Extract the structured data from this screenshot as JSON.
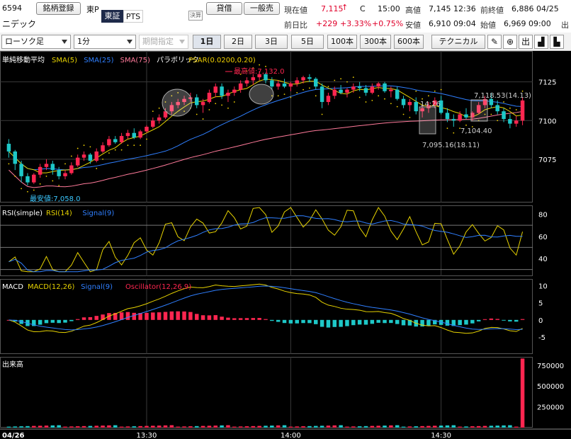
{
  "header": {
    "code": "6594",
    "name": "ニデック",
    "register_label": "銘柄登録",
    "market_label": "東P",
    "exchange_tse": "東証",
    "exchange_pts": "PTS",
    "kessan_label": "決算",
    "lending_label": "貸借",
    "general_margin_label": "一般売",
    "current_price_label": "現在値",
    "current_price": "7,115",
    "current_arrow": "↑",
    "current_flag": "C",
    "current_time": "15:00",
    "high_label": "高値",
    "high_value": "7,145 12:36",
    "prev_close_label": "前終値",
    "prev_close_value": "6,886 04/25",
    "prev_day_label": "前日比",
    "change": "+229",
    "change_pct": "+3.33%",
    "change_pct2": "+0.75%",
    "low_label": "安値",
    "low_value": "6,910 09:04",
    "open_label": "始値",
    "open_value": "6,969 09:00",
    "cut_label": "出"
  },
  "toolbar": {
    "chart_type": "ローソク足",
    "interval": "1分",
    "period_placeholder": "期間指定",
    "range_buttons": [
      "1日",
      "2日",
      "3日",
      "5日",
      "100本",
      "300本",
      "600本"
    ],
    "active_range": "1日",
    "technical_label": "テクニカル",
    "icon_pencil": "✎",
    "icon_zoom": "⊕",
    "icon_bar": "出",
    "icon_area": "▟",
    "icon_line": "▙"
  },
  "colors": {
    "up": "#ff2650",
    "down": "#1ec8c8",
    "sma5": "#e6d200",
    "sma25": "#2f7fff",
    "sma75": "#ff7a9a",
    "psar": "#f0d000",
    "rsi": "#e6d200",
    "signal": "#2f7fff",
    "osc": "#ff2650",
    "grid": "#3a3a3a",
    "text": "#ffffff"
  },
  "chart_data": [
    {
      "type": "candlestick",
      "title": "単純移動平均",
      "legend": [
        {
          "name": "SMA(5)",
          "color": "#e6d200"
        },
        {
          "name": "SMA(25)",
          "color": "#2f7fff"
        },
        {
          "name": "SMA(75)",
          "color": "#ff7a9a"
        },
        {
          "name": "パラボリック",
          "color": "#ffffff"
        },
        {
          "name": "PSAR(0.0200,0.20)",
          "color": "#f0d000"
        }
      ],
      "y_ticks": [
        7125,
        7100,
        7075
      ],
      "ylim": [
        7047,
        7145
      ],
      "x_ticks": [
        "04/26",
        "13:30",
        "14:00",
        "14:30"
      ],
      "annotations": [
        "最高値:7,132.0",
        "最安値:7,058.0",
        "7,118.53(14.13)",
        "14:26",
        "7,104.40",
        "7,095.16(18.11)"
      ],
      "candles_ohlc": [
        [
          7085,
          7088,
          7076,
          7080
        ],
        [
          7080,
          7081,
          7068,
          7072
        ],
        [
          7072,
          7074,
          7060,
          7064
        ],
        [
          7064,
          7066,
          7058,
          7060
        ],
        [
          7060,
          7066,
          7059,
          7065
        ],
        [
          7065,
          7072,
          7063,
          7070
        ],
        [
          7070,
          7075,
          7068,
          7072
        ],
        [
          7072,
          7074,
          7065,
          7068
        ],
        [
          7068,
          7070,
          7062,
          7064
        ],
        [
          7064,
          7068,
          7062,
          7066
        ],
        [
          7066,
          7073,
          7065,
          7071
        ],
        [
          7071,
          7078,
          7070,
          7076
        ],
        [
          7076,
          7080,
          7074,
          7078
        ],
        [
          7078,
          7079,
          7072,
          7074
        ],
        [
          7074,
          7082,
          7073,
          7080
        ],
        [
          7080,
          7086,
          7079,
          7084
        ],
        [
          7084,
          7090,
          7083,
          7088
        ],
        [
          7088,
          7090,
          7085,
          7086
        ],
        [
          7086,
          7092,
          7085,
          7090
        ],
        [
          7090,
          7094,
          7088,
          7092
        ],
        [
          7092,
          7095,
          7088,
          7089
        ],
        [
          7089,
          7094,
          7088,
          7093
        ],
        [
          7093,
          7097,
          7092,
          7096
        ],
        [
          7096,
          7102,
          7095,
          7100
        ],
        [
          7100,
          7104,
          7098,
          7102
        ],
        [
          7102,
          7108,
          7101,
          7106
        ],
        [
          7106,
          7112,
          7104,
          7110
        ],
        [
          7110,
          7114,
          7108,
          7112
        ],
        [
          7112,
          7116,
          7110,
          7114
        ],
        [
          7114,
          7118,
          7112,
          7115
        ],
        [
          7115,
          7117,
          7108,
          7110
        ],
        [
          7110,
          7114,
          7105,
          7112
        ],
        [
          7112,
          7120,
          7111,
          7118
        ],
        [
          7118,
          7124,
          7115,
          7122
        ],
        [
          7122,
          7124,
          7114,
          7116
        ],
        [
          7116,
          7120,
          7112,
          7118
        ],
        [
          7118,
          7122,
          7116,
          7120
        ],
        [
          7120,
          7126,
          7118,
          7124
        ],
        [
          7124,
          7128,
          7122,
          7126
        ],
        [
          7126,
          7130,
          7123,
          7128
        ],
        [
          7128,
          7132,
          7126,
          7130
        ],
        [
          7130,
          7131,
          7124,
          7126
        ],
        [
          7126,
          7128,
          7120,
          7122
        ],
        [
          7122,
          7126,
          7120,
          7124
        ],
        [
          7124,
          7127,
          7121,
          7122
        ],
        [
          7122,
          7125,
          7119,
          7124
        ],
        [
          7124,
          7128,
          7122,
          7126
        ],
        [
          7126,
          7129,
          7124,
          7128
        ],
        [
          7128,
          7130,
          7125,
          7127
        ],
        [
          7127,
          7128,
          7120,
          7122
        ],
        [
          7122,
          7124,
          7108,
          7112
        ],
        [
          7112,
          7118,
          7110,
          7116
        ],
        [
          7116,
          7122,
          7114,
          7120
        ],
        [
          7120,
          7123,
          7117,
          7118
        ],
        [
          7118,
          7121,
          7115,
          7120
        ],
        [
          7120,
          7124,
          7118,
          7122
        ],
        [
          7122,
          7125,
          7119,
          7121
        ],
        [
          7121,
          7123,
          7116,
          7118
        ],
        [
          7118,
          7124,
          7117,
          7122
        ],
        [
          7122,
          7125,
          7120,
          7124
        ],
        [
          7124,
          7125,
          7118,
          7119
        ],
        [
          7119,
          7122,
          7115,
          7120
        ],
        [
          7120,
          7122,
          7113,
          7114
        ],
        [
          7114,
          7116,
          7108,
          7110
        ],
        [
          7110,
          7114,
          7106,
          7112
        ],
        [
          7112,
          7115,
          7104,
          7106
        ],
        [
          7106,
          7110,
          7102,
          7108
        ],
        [
          7108,
          7112,
          7105,
          7110
        ],
        [
          7110,
          7115,
          7108,
          7113
        ],
        [
          7113,
          7116,
          7104,
          7105
        ],
        [
          7105,
          7108,
          7099,
          7101
        ],
        [
          7101,
          7104,
          7096,
          7100
        ],
        [
          7100,
          7106,
          7099,
          7104
        ],
        [
          7104,
          7108,
          7101,
          7102
        ],
        [
          7102,
          7106,
          7100,
          7105
        ],
        [
          7105,
          7112,
          7104,
          7110
        ],
        [
          7110,
          7116,
          7108,
          7114
        ],
        [
          7114,
          7118,
          7108,
          7110
        ],
        [
          7110,
          7113,
          7104,
          7106
        ],
        [
          7106,
          7108,
          7099,
          7101
        ],
        [
          7101,
          7104,
          7095,
          7098
        ],
        [
          7098,
          7103,
          7096,
          7100
        ],
        [
          7100,
          7115,
          7097,
          7113
        ]
      ]
    },
    {
      "type": "line",
      "title": "RSI(simple)",
      "legend": [
        {
          "name": "RSI(14)",
          "color": "#e6d200"
        },
        {
          "name": "Signal(9)",
          "color": "#2f7fff"
        }
      ],
      "y_ticks": [
        80,
        60,
        40
      ],
      "ylim": [
        24,
        88
      ],
      "reference_lines": [
        70,
        50,
        30
      ]
    },
    {
      "type": "bar",
      "title": "MACD",
      "legend": [
        {
          "name": "MACD(12,26)",
          "color": "#e6d200"
        },
        {
          "name": "Signal(9)",
          "color": "#2f7fff"
        },
        {
          "name": "Oscillator(12,26,9)",
          "color": "#ff2650"
        }
      ],
      "y_ticks": [
        10,
        5,
        0,
        -5
      ],
      "ylim": [
        -10,
        12
      ]
    },
    {
      "type": "bar",
      "title": "出来高",
      "y_ticks": [
        "750000",
        "500000",
        "250000"
      ],
      "ylim": [
        0,
        850000
      ],
      "last_volume": 830000
    }
  ]
}
